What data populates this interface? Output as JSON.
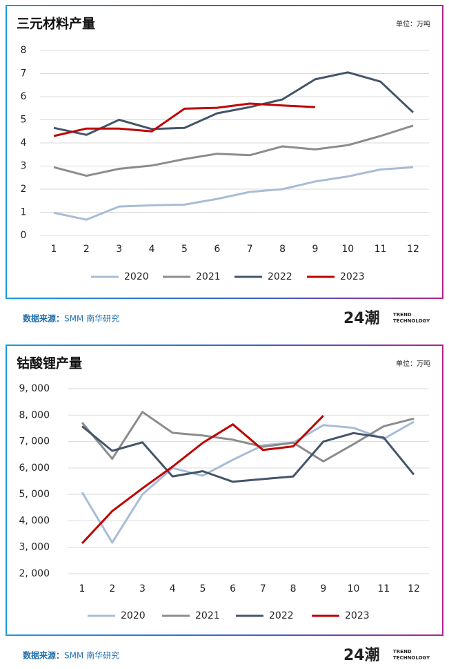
{
  "chart_data": [
    {
      "type": "line",
      "title": "三元材料产量",
      "unit": "单位：万吨",
      "categories": [
        "1",
        "2",
        "3",
        "4",
        "5",
        "6",
        "7",
        "8",
        "9",
        "10",
        "11",
        "12"
      ],
      "ylim": [
        0,
        8
      ],
      "yticks": [
        0,
        1,
        2,
        3,
        4,
        5,
        6,
        7,
        8
      ],
      "grid": true,
      "legend": "bottom",
      "series": [
        {
          "name": "2020",
          "color": "#a9bcd6",
          "values": [
            0.98,
            0.68,
            1.25,
            1.3,
            1.33,
            1.58,
            1.88,
            2.0,
            2.33,
            2.55,
            2.85,
            2.95
          ]
        },
        {
          "name": "2021",
          "color": "#8c8c8c",
          "values": [
            2.95,
            2.58,
            2.88,
            3.02,
            3.3,
            3.53,
            3.47,
            3.85,
            3.72,
            3.9,
            4.3,
            4.75
          ]
        },
        {
          "name": "2022",
          "color": "#44546a",
          "values": [
            4.65,
            4.35,
            5.0,
            4.6,
            4.65,
            5.28,
            5.55,
            5.88,
            6.75,
            7.05,
            6.65,
            5.32
          ]
        },
        {
          "name": "2023",
          "color": "#c00000",
          "values": [
            4.3,
            4.62,
            4.62,
            4.5,
            5.48,
            5.52,
            5.7,
            5.62,
            5.55,
            null,
            null,
            null
          ]
        }
      ],
      "source_label": "数据来源：",
      "source": "SMM 南华研究"
    },
    {
      "type": "line",
      "title": "钴酸锂产量",
      "unit": "单位：万吨",
      "categories": [
        "1",
        "2",
        "3",
        "4",
        "5",
        "6",
        "7",
        "8",
        "9",
        "10",
        "11",
        "12"
      ],
      "ylim": [
        2000,
        9000
      ],
      "yticks": [
        {
          "value": 2000,
          "label": "2, 000"
        },
        {
          "value": 3000,
          "label": "3, 000"
        },
        {
          "value": 4000,
          "label": "4, 000"
        },
        {
          "value": 5000,
          "label": "5, 000"
        },
        {
          "value": 6000,
          "label": "6, 000"
        },
        {
          "value": 7000,
          "label": "7, 000"
        },
        {
          "value": 8000,
          "label": "8, 000"
        },
        {
          "value": 9000,
          "label": "9, 000"
        }
      ],
      "grid": true,
      "legend": "bottom",
      "series": [
        {
          "name": "2020",
          "color": "#a9bcd6",
          "values": [
            5080,
            3180,
            5000,
            6000,
            5710,
            6310,
            6860,
            6960,
            7620,
            7520,
            7100,
            7750
          ]
        },
        {
          "name": "2021",
          "color": "#8c8c8c",
          "values": [
            7720,
            6350,
            8120,
            7330,
            7230,
            7070,
            6800,
            6960,
            6250,
            6900,
            7580,
            7870
          ]
        },
        {
          "name": "2022",
          "color": "#44546a",
          "values": [
            7580,
            6650,
            6970,
            5680,
            5880,
            5480,
            5580,
            5680,
            7000,
            7320,
            7150,
            5750
          ]
        },
        {
          "name": "2023",
          "color": "#c00000",
          "values": [
            3150,
            4370,
            5230,
            6050,
            6950,
            7650,
            6680,
            6820,
            7980,
            null,
            null,
            null
          ]
        }
      ],
      "source_label": "数据来源：",
      "source": "SMM 南华研究"
    }
  ],
  "logo": {
    "mark": "24潮",
    "line1": "TREND",
    "line2": "TECHNOLOGY"
  }
}
